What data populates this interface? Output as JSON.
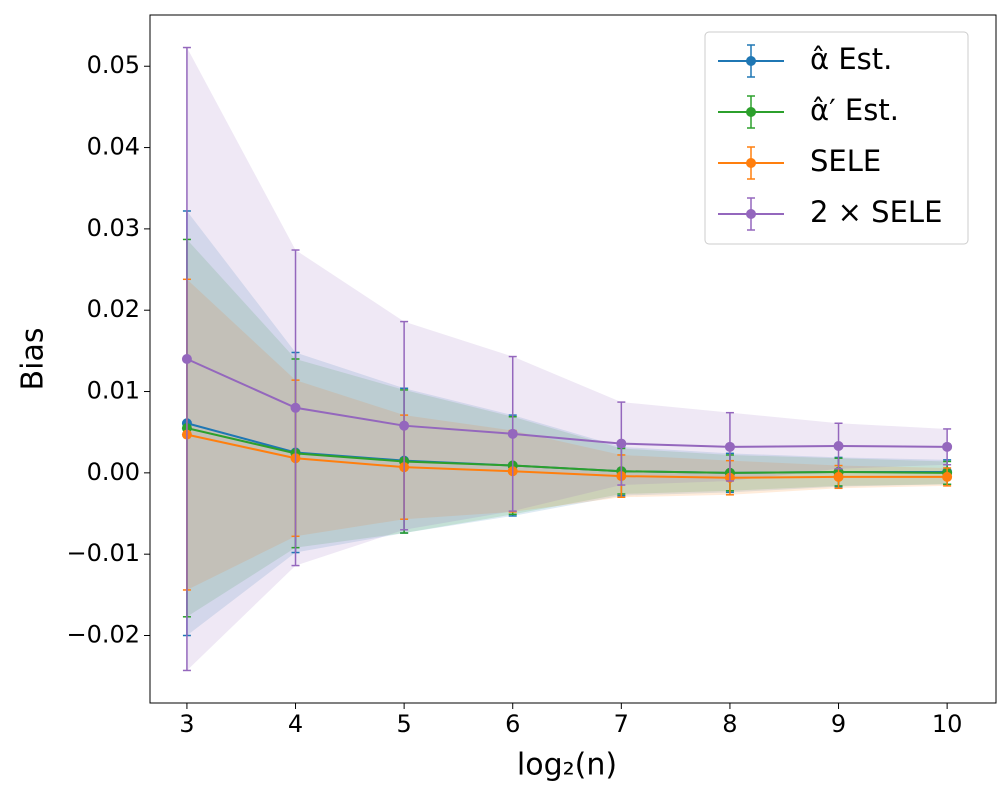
{
  "chart_data": {
    "type": "errorbar_line",
    "xlabel": "log₂(n)",
    "ylabel": "Bias",
    "x": [
      3,
      4,
      5,
      6,
      7,
      8,
      9,
      10
    ],
    "series": [
      {
        "name": "α̂ Est.",
        "color": "#1f77b4",
        "values": [
          0.0061,
          0.0025,
          0.0015,
          0.0009,
          0.0002,
          0.0,
          0.0001,
          0.0001
        ],
        "errors": [
          0.0261,
          0.0123,
          0.0089,
          0.0062,
          0.003,
          0.0024,
          0.0018,
          0.0015
        ]
      },
      {
        "name": "α̂′ Est.",
        "color": "#2ca02c",
        "values": [
          0.0055,
          0.0024,
          0.0014,
          0.0009,
          0.0002,
          0.0,
          0.0001,
          0.0
        ],
        "errors": [
          0.0232,
          0.0116,
          0.0088,
          0.006,
          0.0028,
          0.0022,
          0.0017,
          0.0014
        ]
      },
      {
        "name": "SELE",
        "color": "#ff7f0e",
        "values": [
          0.0047,
          0.0018,
          0.0007,
          0.0002,
          -0.0004,
          -0.0006,
          -0.0005,
          -0.0005
        ],
        "errors": [
          0.0191,
          0.0096,
          0.0064,
          0.005,
          0.0026,
          0.0021,
          0.0014,
          0.0011
        ]
      },
      {
        "name": "2 × SELE",
        "color": "#9467bd",
        "values": [
          0.014,
          0.008,
          0.0058,
          0.0048,
          0.0036,
          0.0032,
          0.0033,
          0.0032
        ],
        "errors": [
          0.0383,
          0.0194,
          0.0128,
          0.0095,
          0.0051,
          0.0042,
          0.0028,
          0.0022
        ]
      }
    ],
    "xlim": [
      2.66,
      10.45
    ],
    "ylim": [
      -0.0283,
      0.0563
    ],
    "xticks": [
      3,
      4,
      5,
      6,
      7,
      8,
      9,
      10
    ],
    "yticks": [
      {
        "value": -0.02,
        "label": "−0.02"
      },
      {
        "value": -0.01,
        "label": "−0.01"
      },
      {
        "value": 0,
        "label": "0.00"
      },
      {
        "value": 0.01,
        "label": "0.01"
      },
      {
        "value": 0.02,
        "label": "0.02"
      },
      {
        "value": 0.03,
        "label": "0.03"
      },
      {
        "value": 0.04,
        "label": "0.04"
      },
      {
        "value": 0.05,
        "label": "0.05"
      }
    ],
    "legend": "upper right",
    "grid": false
  }
}
